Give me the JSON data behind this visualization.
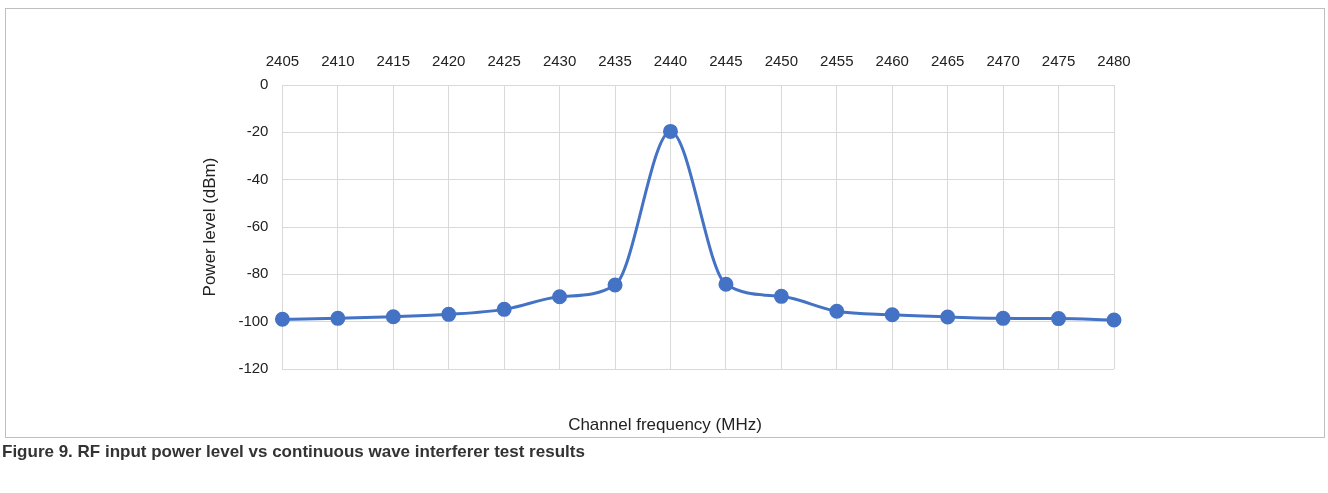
{
  "chart_data": {
    "type": "line",
    "title": "Figure 9.  RF input power level vs continuous wave interferer test results",
    "xlabel": "Channel frequency (MHz)",
    "ylabel": "Power level (dBm)",
    "categories": [
      "2405",
      "2410",
      "2415",
      "2420",
      "2425",
      "2430",
      "2435",
      "2440",
      "2445",
      "2450",
      "2455",
      "2460",
      "2465",
      "2470",
      "2475",
      "2480"
    ],
    "series": [
      {
        "color": "#4472c4",
        "values": [
          -99,
          -98.6,
          -97.9,
          -96.9,
          -94.8,
          -89.5,
          -84.5,
          -19.6,
          -84.2,
          -89.3,
          -95.6,
          -97.1,
          -98,
          -98.6,
          -98.7,
          -99.3
        ]
      }
    ],
    "ylim": [
      -120,
      0
    ],
    "yticks": [
      -120,
      -100,
      -80,
      -60,
      -40,
      -20,
      0
    ],
    "grid": true,
    "legend": false,
    "marker": "circle",
    "line_style": "solid"
  }
}
